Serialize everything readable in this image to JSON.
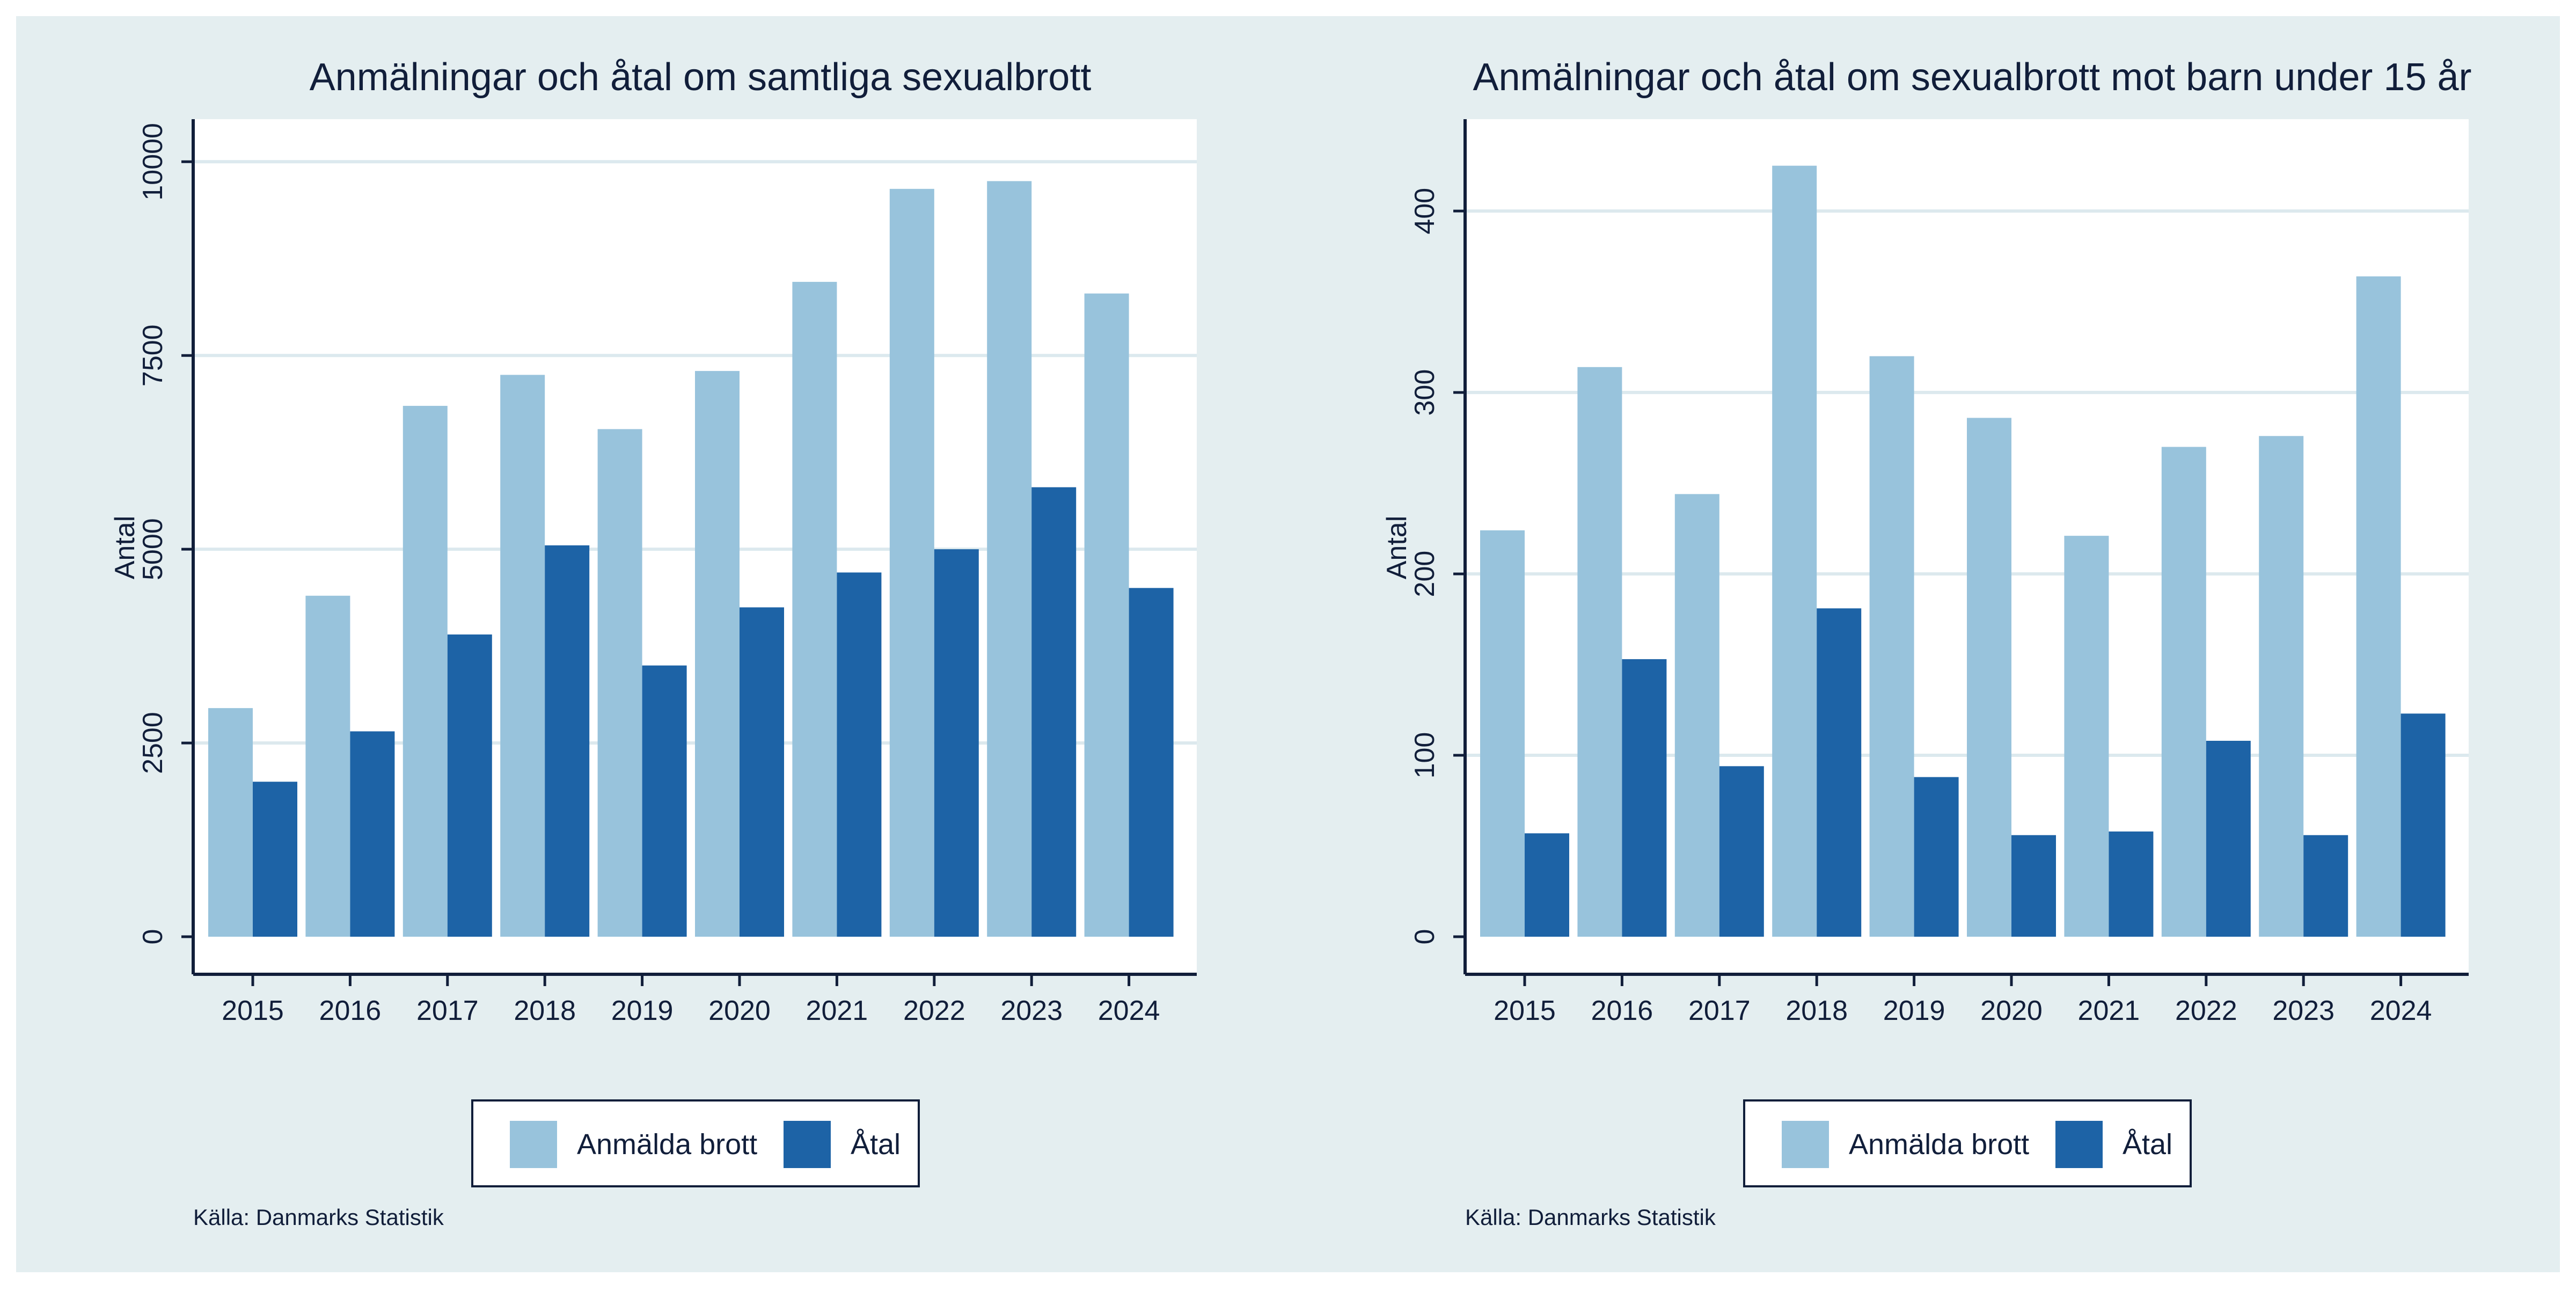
{
  "colors": {
    "outer_bg": "#e4eef0",
    "plot_bg": "#ffffff",
    "grid": "#dce9ee",
    "reported": "#98c3dc",
    "prosecuted": "#1d63a6",
    "text": "#111e3a"
  },
  "chart_data": [
    {
      "type": "bar",
      "title": "Anmälningar och åtal om samtliga sexualbrott",
      "ylabel": "Antal",
      "xlabel": "",
      "categories": [
        "2015",
        "2016",
        "2017",
        "2018",
        "2019",
        "2020",
        "2021",
        "2022",
        "2023",
        "2024"
      ],
      "series": [
        {
          "name": "Anmälda brott",
          "values": [
            2950,
            4400,
            6850,
            7250,
            6550,
            7300,
            8450,
            9650,
            9750,
            8300
          ]
        },
        {
          "name": "Åtal",
          "values": [
            2000,
            2650,
            3900,
            5050,
            3500,
            4250,
            4700,
            5000,
            5800,
            4500
          ]
        }
      ],
      "ylim": [
        0,
        10300
      ],
      "yticks": [
        0,
        2500,
        5000,
        7500,
        10000
      ],
      "grid": true,
      "legend": "bottom-center",
      "source": "Källa: Danmarks Statistik"
    },
    {
      "type": "bar",
      "title": "Anmälningar och åtal om sexualbrott mot barn under 15 år",
      "ylabel": "Antal",
      "xlabel": "",
      "categories": [
        "2015",
        "2016",
        "2017",
        "2018",
        "2019",
        "2020",
        "2021",
        "2022",
        "2023",
        "2024"
      ],
      "series": [
        {
          "name": "Anmälda brott",
          "values": [
            224,
            314,
            244,
            425,
            320,
            286,
            221,
            270,
            276,
            364
          ]
        },
        {
          "name": "Åtal",
          "values": [
            57,
            153,
            94,
            181,
            88,
            56,
            58,
            108,
            56,
            123
          ]
        }
      ],
      "ylim": [
        0,
        440
      ],
      "yticks": [
        0,
        100,
        200,
        300,
        400
      ],
      "grid": true,
      "legend": "bottom-center",
      "source": "Källa: Danmarks Statistik"
    }
  ]
}
